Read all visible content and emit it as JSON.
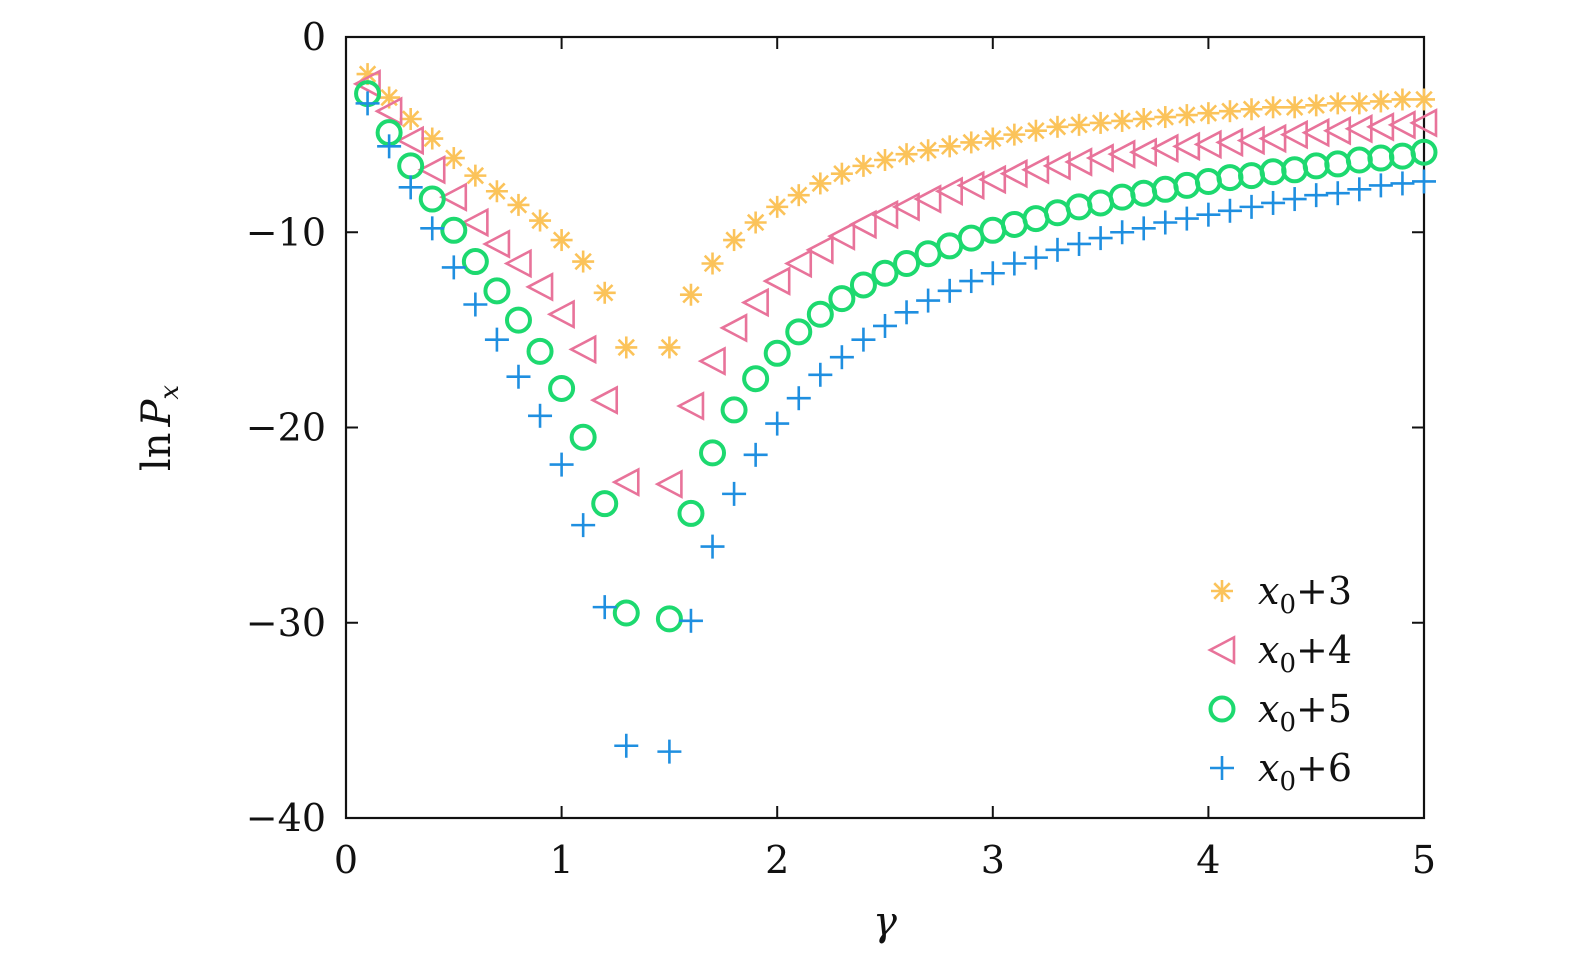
{
  "chart_data": {
    "type": "scatter",
    "xlabel": "γ",
    "ylabel": "ln P_x",
    "xlim": [
      0,
      5
    ],
    "ylim": [
      -40,
      0
    ],
    "xticks": [
      "0",
      "1",
      "2",
      "3",
      "4",
      "5"
    ],
    "yticks": [
      "0",
      "−10",
      "−20",
      "−30",
      "−40"
    ],
    "grid": false,
    "legend_position": "bottom-right",
    "series": [
      {
        "name": "x0+3",
        "legend_main": "x",
        "legend_sub": "0",
        "legend_tail": "+3",
        "marker": "asterisk",
        "color": "#FBC35A",
        "x": [
          0.1,
          0.2,
          0.3,
          0.4,
          0.5,
          0.6,
          0.7,
          0.8,
          0.9,
          1.0,
          1.1,
          1.2,
          1.3,
          1.5,
          1.6,
          1.7,
          1.8,
          1.9,
          2.0,
          2.1,
          2.2,
          2.3,
          2.4,
          2.5,
          2.6,
          2.7,
          2.8,
          2.9,
          3.0,
          3.1,
          3.2,
          3.3,
          3.4,
          3.5,
          3.6,
          3.7,
          3.8,
          3.9,
          4.0,
          4.1,
          4.2,
          4.3,
          4.4,
          4.5,
          4.6,
          4.7,
          4.8,
          4.9,
          5.0
        ],
        "y": [
          -1.9,
          -3.1,
          -4.2,
          -5.2,
          -6.2,
          -7.1,
          -7.9,
          -8.6,
          -9.4,
          -10.4,
          -11.5,
          -13.1,
          -15.9,
          -15.9,
          -13.2,
          -11.6,
          -10.4,
          -9.5,
          -8.7,
          -8.1,
          -7.5,
          -7.0,
          -6.6,
          -6.3,
          -6.0,
          -5.8,
          -5.6,
          -5.4,
          -5.2,
          -5.0,
          -4.8,
          -4.6,
          -4.5,
          -4.4,
          -4.3,
          -4.2,
          -4.1,
          -4.0,
          -3.9,
          -3.8,
          -3.7,
          -3.6,
          -3.6,
          -3.5,
          -3.4,
          -3.4,
          -3.3,
          -3.2,
          -3.2
        ]
      },
      {
        "name": "x0+4",
        "legend_main": "x",
        "legend_sub": "0",
        "legend_tail": "+4",
        "marker": "triangle-left",
        "color": "#E8739A",
        "x": [
          0.1,
          0.2,
          0.3,
          0.4,
          0.5,
          0.6,
          0.7,
          0.8,
          0.9,
          1.0,
          1.1,
          1.2,
          1.3,
          1.5,
          1.6,
          1.7,
          1.8,
          1.9,
          2.0,
          2.1,
          2.2,
          2.3,
          2.4,
          2.5,
          2.6,
          2.7,
          2.8,
          2.9,
          3.0,
          3.1,
          3.2,
          3.3,
          3.4,
          3.5,
          3.6,
          3.7,
          3.8,
          3.9,
          4.0,
          4.1,
          4.2,
          4.3,
          4.4,
          4.5,
          4.6,
          4.7,
          4.8,
          4.9,
          5.0
        ],
        "y": [
          -2.4,
          -3.8,
          -5.3,
          -6.8,
          -8.2,
          -9.5,
          -10.6,
          -11.6,
          -12.8,
          -14.2,
          -16.0,
          -18.6,
          -22.8,
          -22.9,
          -18.9,
          -16.6,
          -14.9,
          -13.6,
          -12.5,
          -11.6,
          -10.9,
          -10.2,
          -9.6,
          -9.1,
          -8.7,
          -8.3,
          -7.9,
          -7.6,
          -7.3,
          -7.0,
          -6.8,
          -6.6,
          -6.4,
          -6.2,
          -6.0,
          -5.9,
          -5.7,
          -5.6,
          -5.5,
          -5.4,
          -5.3,
          -5.2,
          -5.0,
          -4.9,
          -4.8,
          -4.7,
          -4.6,
          -4.5,
          -4.4
        ]
      },
      {
        "name": "x0+5",
        "legend_main": "x",
        "legend_sub": "0",
        "legend_tail": "+5",
        "marker": "circle",
        "color": "#1DD96F",
        "x": [
          0.1,
          0.2,
          0.3,
          0.4,
          0.5,
          0.6,
          0.7,
          0.8,
          0.9,
          1.0,
          1.1,
          1.2,
          1.3,
          1.5,
          1.6,
          1.7,
          1.8,
          1.9,
          2.0,
          2.1,
          2.2,
          2.3,
          2.4,
          2.5,
          2.6,
          2.7,
          2.8,
          2.9,
          3.0,
          3.1,
          3.2,
          3.3,
          3.4,
          3.5,
          3.6,
          3.7,
          3.8,
          3.9,
          4.0,
          4.1,
          4.2,
          4.3,
          4.4,
          4.5,
          4.6,
          4.7,
          4.8,
          4.9,
          5.0
        ],
        "y": [
          -2.9,
          -4.9,
          -6.6,
          -8.3,
          -9.9,
          -11.5,
          -13.0,
          -14.5,
          -16.1,
          -18.0,
          -20.5,
          -23.9,
          -29.5,
          -29.8,
          -24.4,
          -21.3,
          -19.1,
          -17.5,
          -16.2,
          -15.1,
          -14.2,
          -13.4,
          -12.7,
          -12.1,
          -11.6,
          -11.1,
          -10.7,
          -10.3,
          -9.9,
          -9.6,
          -9.3,
          -9.0,
          -8.7,
          -8.5,
          -8.2,
          -8.0,
          -7.8,
          -7.6,
          -7.4,
          -7.2,
          -7.1,
          -6.9,
          -6.8,
          -6.6,
          -6.5,
          -6.3,
          -6.2,
          -6.1,
          -5.9
        ]
      },
      {
        "name": "x0+6",
        "legend_main": "x",
        "legend_sub": "0",
        "legend_tail": "+6",
        "marker": "plus",
        "color": "#1F8FE0",
        "x": [
          0.1,
          0.2,
          0.3,
          0.4,
          0.5,
          0.6,
          0.7,
          0.8,
          0.9,
          1.0,
          1.1,
          1.2,
          1.3,
          1.5,
          1.6,
          1.7,
          1.8,
          1.9,
          2.0,
          2.1,
          2.2,
          2.3,
          2.4,
          2.5,
          2.6,
          2.7,
          2.8,
          2.9,
          3.0,
          3.1,
          3.2,
          3.3,
          3.4,
          3.5,
          3.6,
          3.7,
          3.8,
          3.9,
          4.0,
          4.1,
          4.2,
          4.3,
          4.4,
          4.5,
          4.6,
          4.7,
          4.8,
          4.9,
          5.0
        ],
        "y": [
          -3.4,
          -5.6,
          -7.7,
          -9.8,
          -11.8,
          -13.7,
          -15.5,
          -17.4,
          -19.4,
          -21.9,
          -25.0,
          -29.2,
          -36.3,
          -36.6,
          -29.9,
          -26.1,
          -23.4,
          -21.4,
          -19.8,
          -18.5,
          -17.3,
          -16.4,
          -15.5,
          -14.8,
          -14.1,
          -13.5,
          -13.0,
          -12.5,
          -12.1,
          -11.6,
          -11.3,
          -10.9,
          -10.6,
          -10.3,
          -10.0,
          -9.8,
          -9.5,
          -9.3,
          -9.1,
          -8.9,
          -8.7,
          -8.5,
          -8.3,
          -8.1,
          -8.0,
          -7.8,
          -7.6,
          -7.5,
          -7.4
        ]
      }
    ]
  }
}
